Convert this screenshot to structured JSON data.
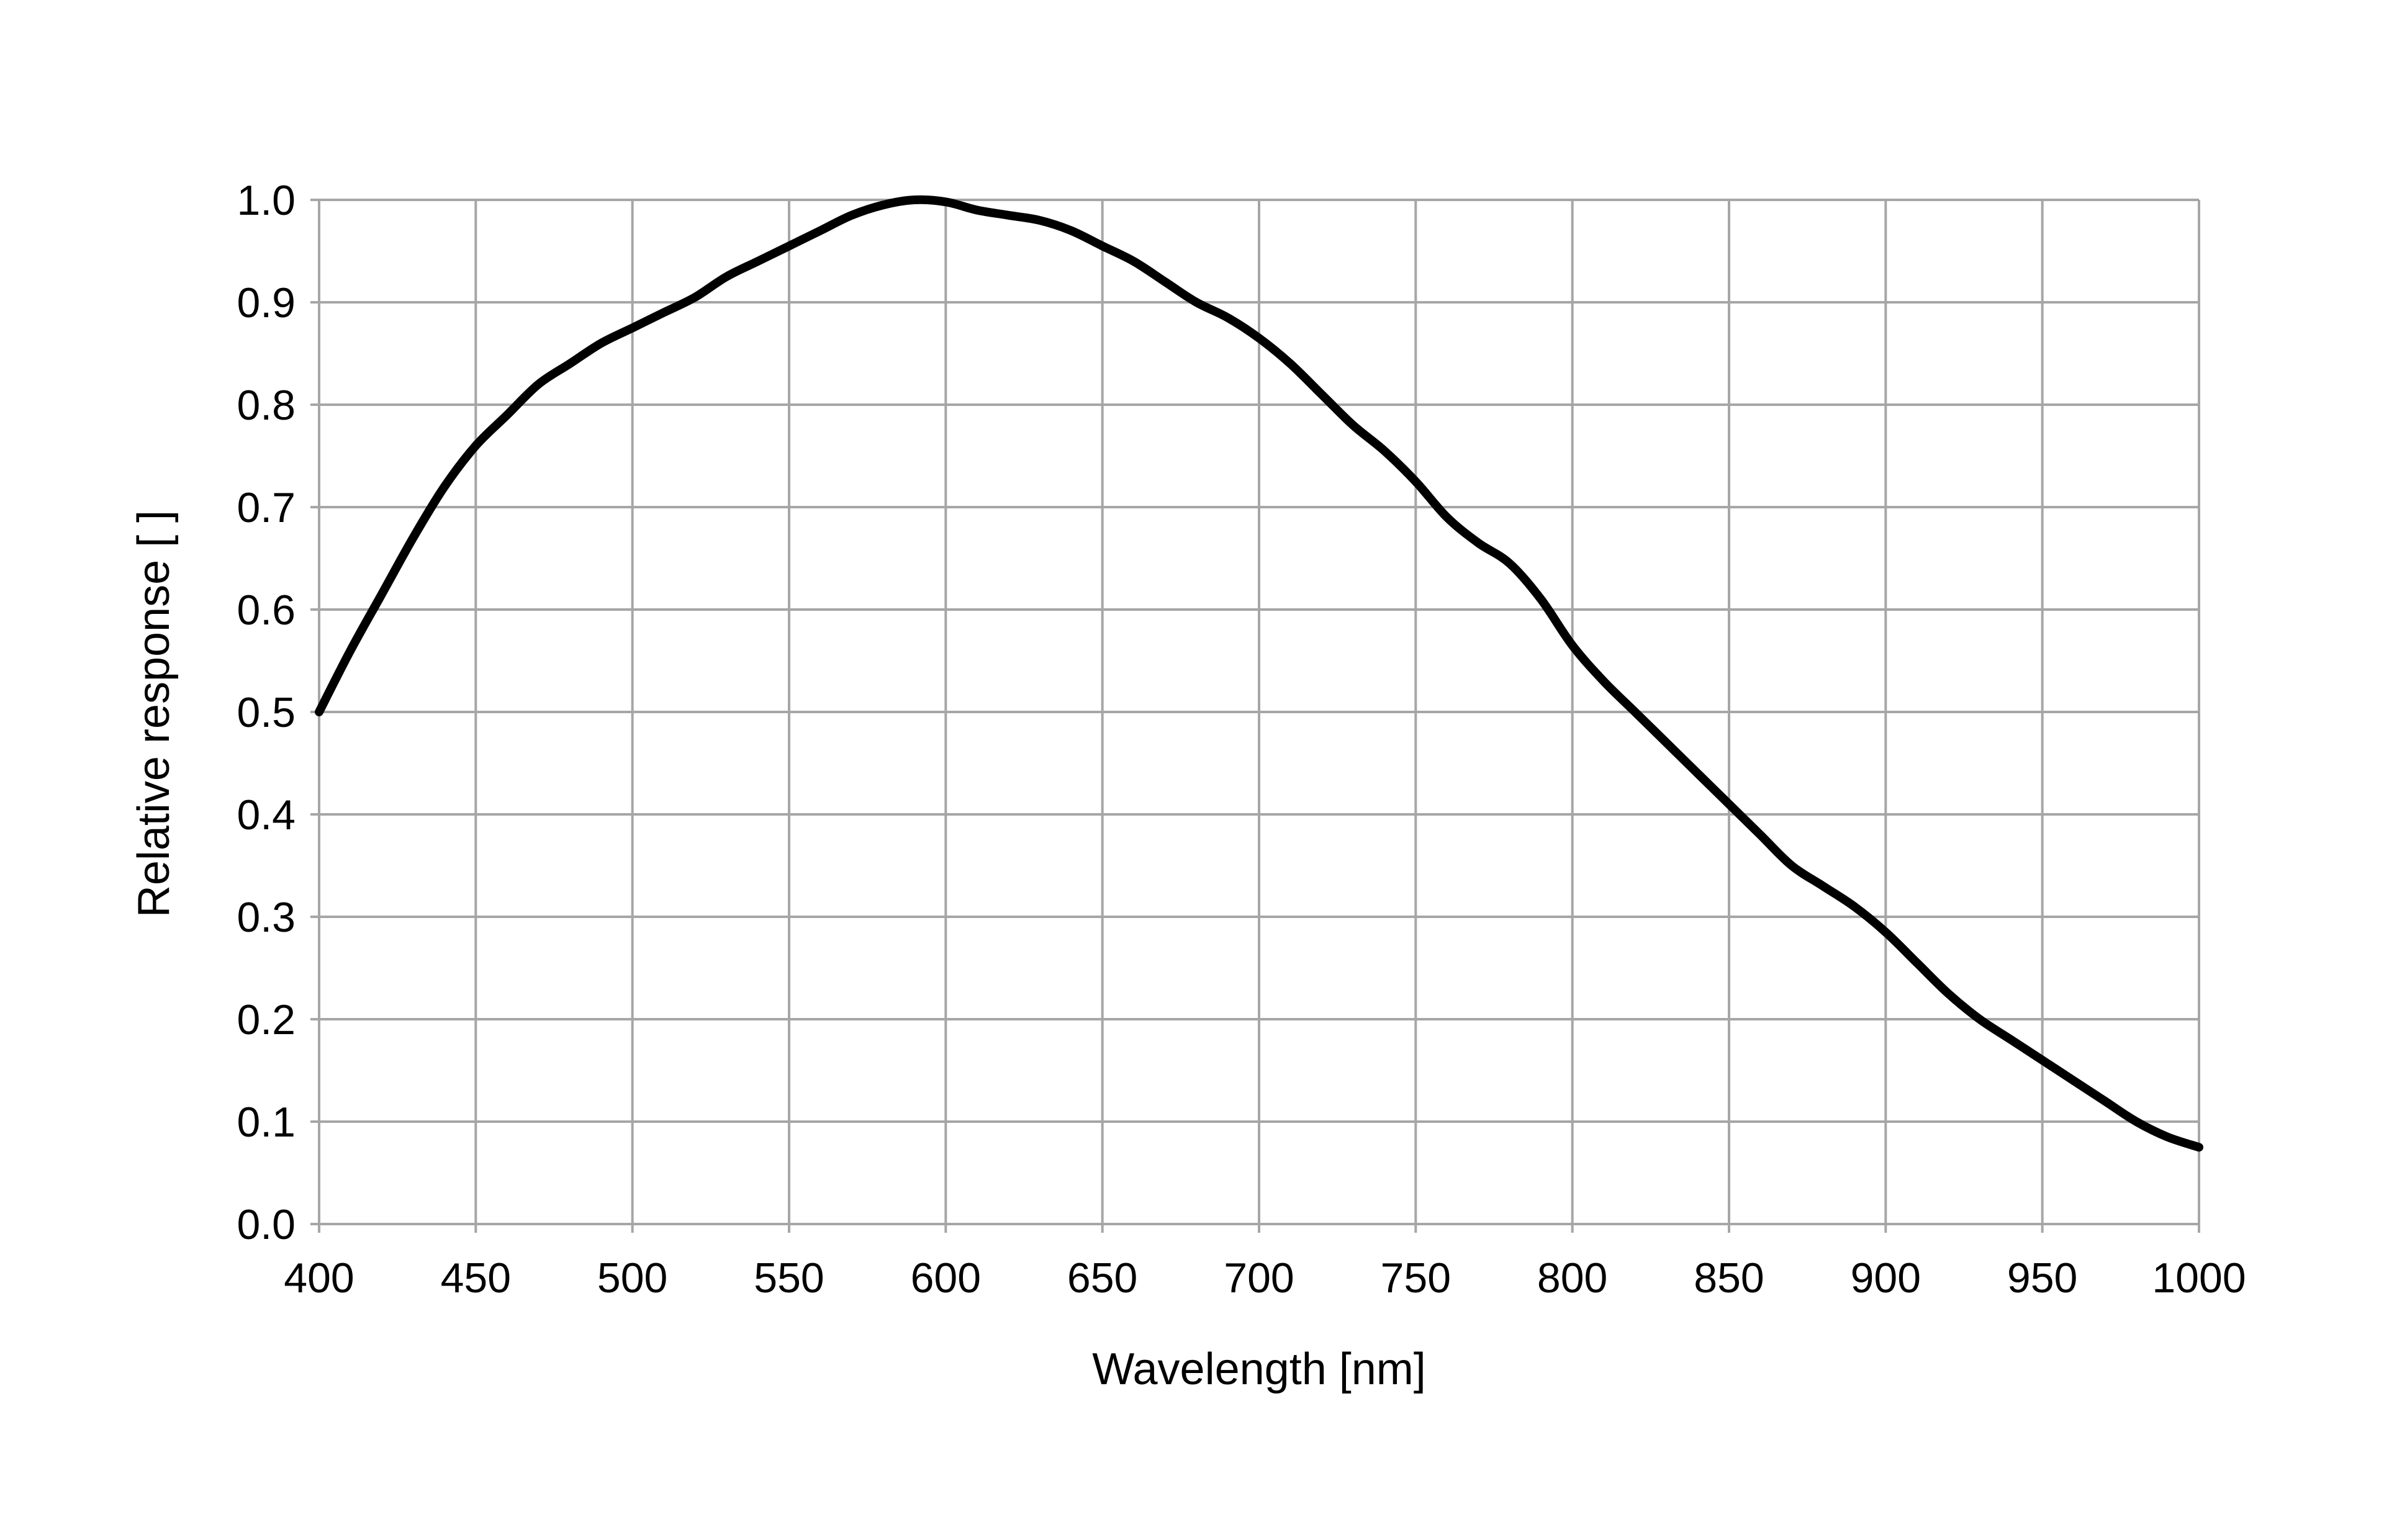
{
  "chart_data": {
    "type": "line",
    "title": "",
    "xlabel": "Wavelength [nm]",
    "ylabel": "Relative response [ ]",
    "xlim": [
      400,
      1000
    ],
    "ylim": [
      0.0,
      1.0
    ],
    "x_ticks": [
      400,
      450,
      500,
      550,
      600,
      650,
      700,
      750,
      800,
      850,
      900,
      950,
      1000
    ],
    "y_ticks": [
      0.0,
      0.1,
      0.2,
      0.3,
      0.4,
      0.5,
      0.6,
      0.7,
      0.8,
      0.9,
      1.0
    ],
    "x_tick_labels": [
      "400",
      "450",
      "500",
      "550",
      "600",
      "650",
      "700",
      "750",
      "800",
      "850",
      "900",
      "950",
      "1000"
    ],
    "y_tick_labels": [
      "0.0",
      "0.1",
      "0.2",
      "0.3",
      "0.4",
      "0.5",
      "0.6",
      "0.7",
      "0.8",
      "0.9",
      "1.0"
    ],
    "grid": true,
    "legend": "none",
    "colors": {
      "line": "#000000",
      "grid": "#a6a6a6",
      "background": "#ffffff"
    },
    "series": [
      {
        "x": [
          400,
          410,
          420,
          430,
          440,
          450,
          460,
          470,
          480,
          490,
          500,
          510,
          520,
          530,
          540,
          550,
          560,
          570,
          580,
          590,
          600,
          610,
          620,
          630,
          640,
          650,
          660,
          670,
          680,
          690,
          700,
          710,
          720,
          730,
          740,
          750,
          760,
          770,
          780,
          790,
          800,
          810,
          820,
          830,
          840,
          850,
          860,
          870,
          880,
          890,
          900,
          910,
          920,
          930,
          940,
          950,
          960,
          970,
          980,
          990,
          1000
        ],
        "y": [
          0.5,
          0.56,
          0.615,
          0.67,
          0.72,
          0.76,
          0.79,
          0.82,
          0.84,
          0.86,
          0.875,
          0.89,
          0.905,
          0.925,
          0.94,
          0.955,
          0.97,
          0.985,
          0.995,
          1.0,
          0.998,
          0.99,
          0.985,
          0.98,
          0.97,
          0.955,
          0.94,
          0.92,
          0.9,
          0.885,
          0.865,
          0.84,
          0.81,
          0.78,
          0.755,
          0.725,
          0.69,
          0.665,
          0.645,
          0.61,
          0.565,
          0.53,
          0.5,
          0.47,
          0.44,
          0.41,
          0.38,
          0.35,
          0.33,
          0.31,
          0.285,
          0.255,
          0.225,
          0.2,
          0.18,
          0.16,
          0.14,
          0.12,
          0.1,
          0.085,
          0.075
        ]
      }
    ]
  }
}
